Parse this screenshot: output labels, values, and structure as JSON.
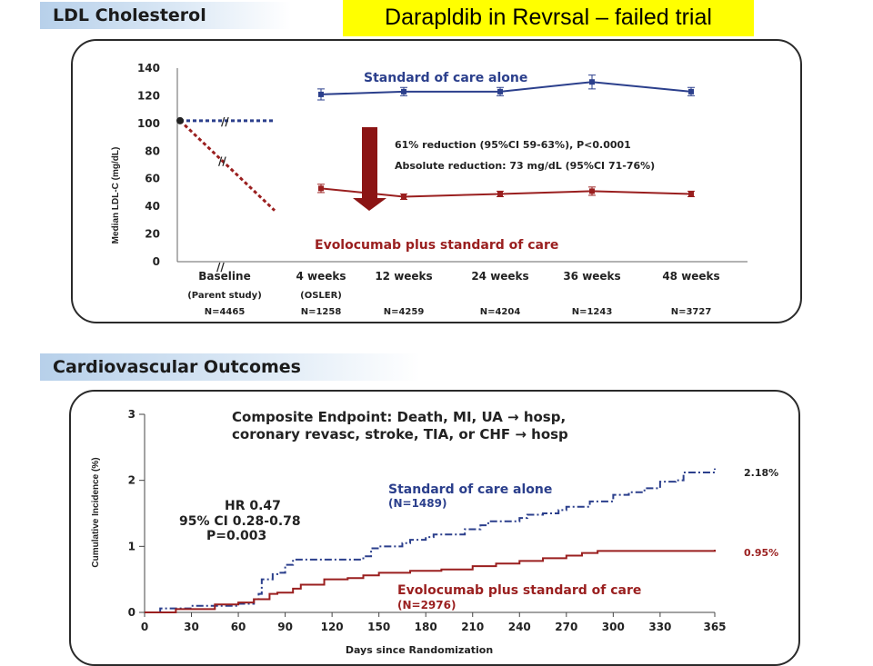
{
  "slide": {
    "note": "Darapldib in Revrsal – failed trial",
    "ldl_section_title": "LDL Cholesterol",
    "cv_section_title": "Cardiovascular Outcomes"
  },
  "colors": {
    "standard_series": "#2b3f8c",
    "evolocumab_series": "#9a1f1f",
    "arrow": "#8b1414",
    "banner": "#b7d0ea",
    "note_background": "#ffff00"
  },
  "chart_data": [
    {
      "type": "line",
      "ylabel": "Median LDL-C (mg/dL)",
      "ylim": [
        0,
        140
      ],
      "yticks": [
        0,
        20,
        40,
        60,
        80,
        100,
        120,
        140
      ],
      "grid": false,
      "categories": [
        "Baseline",
        "4 weeks",
        "12 weeks",
        "24 weeks",
        "36 weeks",
        "48 weeks"
      ],
      "sublabels": [
        "(Parent study)",
        "(OSLER)",
        "",
        "",
        "",
        ""
      ],
      "n_labels": [
        "N=4465",
        "N=1258",
        "N=4259",
        "N=4204",
        "N=1243",
        "N=3727"
      ],
      "baseline_value": 102,
      "series": [
        {
          "name": "Standard of care alone",
          "color": "#2b3f8c",
          "values": [
            102,
            121,
            123,
            123,
            130,
            123
          ],
          "error": [
            0,
            4,
            3,
            3,
            5,
            3
          ]
        },
        {
          "name": "Evolocumab plus standard of care",
          "color": "#9a1f1f",
          "values": [
            102,
            53,
            47,
            49,
            51,
            49
          ],
          "error": [
            0,
            3,
            2,
            2,
            3,
            2
          ]
        }
      ],
      "annotations": [
        "61% reduction (95%CI 59-63%), P<0.0001",
        "Absolute reduction: 73 mg/dL (95%CI 71-76%)"
      ]
    },
    {
      "type": "line",
      "title_lines": [
        "Composite Endpoint: Death, MI, UA → hosp,",
        "coronary revasc, stroke, TIA, or CHF → hosp"
      ],
      "xlabel": "Days since Randomization",
      "ylabel": "Cumulative Incidence (%)",
      "xlim": [
        0,
        365
      ],
      "xticks": [
        0,
        30,
        60,
        90,
        120,
        150,
        180,
        210,
        240,
        270,
        300,
        330,
        365
      ],
      "ylim": [
        0,
        3
      ],
      "yticks": [
        0,
        1,
        2,
        3
      ],
      "grid": false,
      "stats": [
        "HR 0.47",
        "95% CI 0.28-0.78",
        "P=0.003"
      ],
      "series": [
        {
          "name": "Standard of care alone",
          "n": "(N=1489)",
          "color": "#2b3f8c",
          "end_label": "2.18%",
          "x": [
            0,
            10,
            30,
            60,
            70,
            73,
            75,
            82,
            85,
            90,
            95,
            115,
            140,
            145,
            150,
            165,
            170,
            180,
            185,
            195,
            205,
            215,
            220,
            240,
            245,
            255,
            265,
            270,
            285,
            300,
            310,
            320,
            330,
            340,
            345,
            365
          ],
          "y": [
            0,
            0.06,
            0.1,
            0.13,
            0.2,
            0.28,
            0.5,
            0.58,
            0.6,
            0.72,
            0.8,
            0.8,
            0.85,
            0.97,
            1.0,
            1.05,
            1.1,
            1.14,
            1.18,
            1.18,
            1.26,
            1.32,
            1.38,
            1.43,
            1.48,
            1.5,
            1.55,
            1.6,
            1.68,
            1.78,
            1.82,
            1.88,
            1.98,
            2.0,
            2.12,
            2.18
          ]
        },
        {
          "name": "Evolocumab plus standard of care",
          "n": "(N=2976)",
          "color": "#9a1f1f",
          "end_label": "0.95%",
          "x": [
            0,
            20,
            45,
            60,
            70,
            80,
            85,
            95,
            100,
            115,
            130,
            140,
            150,
            170,
            190,
            210,
            225,
            240,
            255,
            270,
            280,
            290,
            365
          ],
          "y": [
            0,
            0.05,
            0.12,
            0.15,
            0.2,
            0.28,
            0.3,
            0.36,
            0.42,
            0.5,
            0.52,
            0.56,
            0.6,
            0.63,
            0.65,
            0.7,
            0.74,
            0.78,
            0.82,
            0.86,
            0.9,
            0.93,
            0.95
          ]
        }
      ]
    }
  ]
}
